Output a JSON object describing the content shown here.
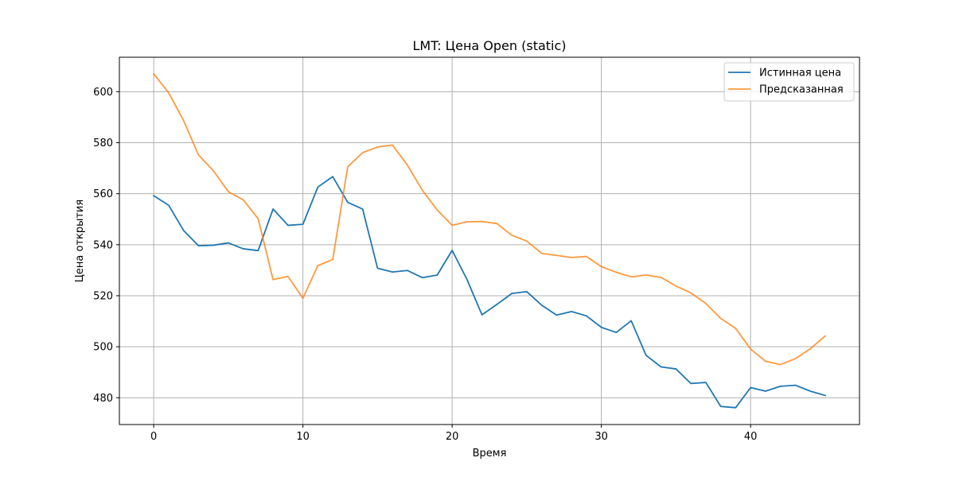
{
  "chart_data": {
    "type": "line",
    "title": "LMT: Цена Open (static)",
    "xlabel": "Время",
    "ylabel": "Цена открытия",
    "xlim": [
      -2.3,
      47.3
    ],
    "ylim": [
      469.5,
      613.5
    ],
    "xticks": [
      0,
      10,
      20,
      30,
      40
    ],
    "yticks": [
      480,
      500,
      520,
      540,
      560,
      580,
      600
    ],
    "grid": true,
    "legend_position": "top-right",
    "series": [
      {
        "name": "Истинная цена",
        "color": "#1f77b4",
        "x": [
          0,
          1,
          2,
          3,
          4,
          5,
          6,
          7,
          8,
          9,
          10,
          11,
          12,
          13,
          14,
          15,
          16,
          17,
          18,
          19,
          20,
          21,
          22,
          23,
          24,
          25,
          26,
          27,
          28,
          29,
          30,
          31,
          32,
          33,
          34,
          35,
          36,
          37,
          38,
          39,
          40,
          41,
          42,
          43,
          44,
          45
        ],
        "values": [
          559.2,
          555.5,
          545.6,
          539.6,
          539.8,
          540.7,
          538.4,
          537.7,
          554.0,
          547.6,
          548.0,
          562.6,
          566.7,
          556.6,
          554.0,
          530.8,
          529.3,
          529.9,
          527.1,
          528.1,
          537.8,
          526.3,
          512.5,
          516.6,
          520.9,
          521.6,
          516.3,
          512.4,
          513.8,
          512.1,
          507.6,
          505.6,
          510.2,
          496.6,
          492.1,
          491.3,
          485.6,
          486.0,
          476.6,
          476.1,
          484.0,
          482.6,
          484.5,
          484.9,
          482.6,
          480.9
        ]
      },
      {
        "name": "Предсказанная",
        "color": "#ff7f0e",
        "x": [
          0,
          1,
          2,
          3,
          4,
          5,
          6,
          7,
          8,
          9,
          10,
          11,
          12,
          13,
          14,
          15,
          16,
          17,
          18,
          19,
          20,
          21,
          22,
          23,
          24,
          25,
          26,
          27,
          28,
          29,
          30,
          31,
          32,
          33,
          34,
          35,
          36,
          37,
          38,
          39,
          40,
          41,
          42,
          43,
          44,
          45
        ],
        "values": [
          607.0,
          599.6,
          588.7,
          575.2,
          569.0,
          560.8,
          557.6,
          550.2,
          526.3,
          527.6,
          519.0,
          531.8,
          534.2,
          570.5,
          576.1,
          578.3,
          579.1,
          571.2,
          561.4,
          553.6,
          547.6,
          549.0,
          549.1,
          548.3,
          543.7,
          541.4,
          536.6,
          535.8,
          535.0,
          535.4,
          531.4,
          529.2,
          527.4,
          528.1,
          527.2,
          523.8,
          521.1,
          517.0,
          511.1,
          507.2,
          499.1,
          494.3,
          493.0,
          495.3,
          499.2,
          504.2
        ]
      }
    ]
  }
}
